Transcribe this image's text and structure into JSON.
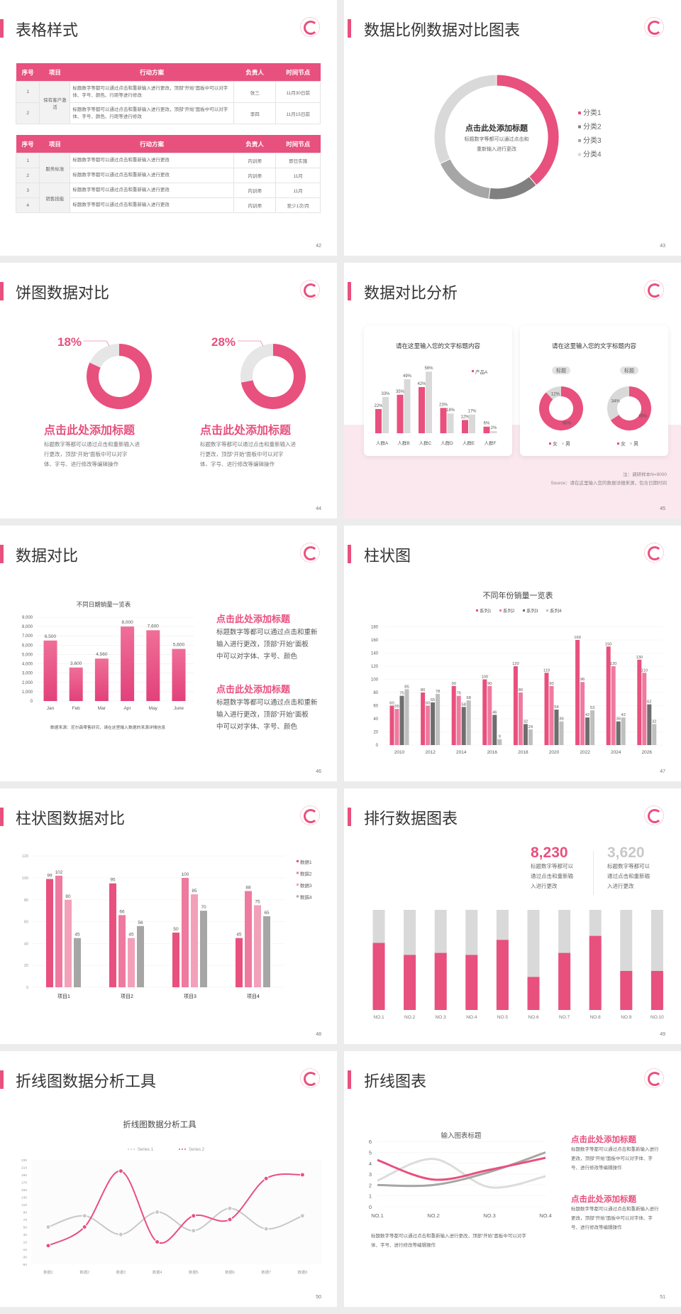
{
  "colors": {
    "accent": "#e8507e",
    "pink2": "#ee7aa0",
    "pink3": "#f3a0ba",
    "dark_gray": "#6e6e6e",
    "mid_gray": "#a6a6a6",
    "light_gray": "#d9d9d9",
    "bg_pink": "#fbe8ee"
  },
  "slides": [
    {
      "title": "表格样式",
      "page": "42",
      "table1": {
        "headers": [
          "序号",
          "项目",
          "行动方案",
          "负责人",
          "时间节点"
        ],
        "groups": [
          "保有客户激活"
        ],
        "rows": [
          {
            "no": "1",
            "action": "标题数字等都可以通过点击和重新输入进行更改，顶部“开始”面板中可以对字体、字号、颜色、行距等进行修改",
            "owner": "张三",
            "time": "11月30日前"
          },
          {
            "no": "2",
            "action": "标题数字等都可以通过点击和重新输入进行更改，顶部“开始”面板中可以对字体、字号、颜色、行距等进行修改",
            "owner": "李四",
            "time": "11月15日前"
          }
        ]
      },
      "table2": {
        "headers": [
          "序号",
          "项目",
          "行动方案",
          "负责人",
          "时间节点"
        ],
        "groups": [
          "服务标准",
          "销售技能"
        ],
        "rows": [
          {
            "no": "1",
            "action": "标题数字等都可以通过点击和重新输入进行更改",
            "owner": "内训师",
            "time": "即日实施"
          },
          {
            "no": "2",
            "action": "标题数字等都可以通过点击和重新输入进行更改",
            "owner": "内训师",
            "time": "11月"
          },
          {
            "no": "3",
            "action": "标题数字等都可以通过点击和重新输入进行更改",
            "owner": "内训师",
            "time": "11月"
          },
          {
            "no": "4",
            "action": "标题数字等都可以通过点击和重新输入进行更改",
            "owner": "内训师",
            "time": "至少1次/月"
          }
        ]
      }
    },
    {
      "title": "数据比例数据对比图表",
      "page": "43",
      "center_title": "点击此处添加标题",
      "center_desc": [
        "标题数字等都可以通过点击和",
        "重新输入进行更改"
      ]
    },
    {
      "title": "饼图数据对比",
      "page": "44",
      "items": [
        {
          "heading": "点击此处添加标题",
          "desc": [
            "标题数字等都可以通过点击和重新输入进",
            "行更改，顶部“开始”面板中可以对字",
            "体、字号、进行修改等编辑操作"
          ]
        },
        {
          "heading": "点击此处添加标题",
          "desc": [
            "标题数字等都可以通过点击和重新输入进",
            "行更改，顶部“开始”面板中可以对字",
            "体、字号、进行修改等编辑操作"
          ]
        }
      ]
    },
    {
      "title": "数据对比分析",
      "page": "45",
      "card1_title": "请在这里输入您的文字标题内容",
      "card2_title": "请在这里输入您的文字标题内容",
      "note": "注：调研样本N=9000",
      "source": "Source：请在这里输入您的数据详细来源，包含日期时间"
    },
    {
      "title": "数据对比",
      "page": "46",
      "blocks": [
        {
          "heading": "点击此处添加标题",
          "desc": [
            "标题数字等都可以通过点击和重新",
            "输入进行更改，顶部“开始”面板",
            "中可以对字体、字号、颜色"
          ]
        },
        {
          "heading": "点击此处添加标题",
          "desc": [
            "标题数字等都可以通过点击和重新",
            "输入进行更改，顶部“开始”面板",
            "中可以对字体、字号、颜色"
          ]
        }
      ]
    },
    {
      "title": "柱状图",
      "page": "47"
    },
    {
      "title": "柱状图数据对比",
      "page": "48"
    },
    {
      "title": "排行数据图表",
      "page": "49",
      "stats": [
        {
          "value": "8,230",
          "desc": [
            "标题数字等都可以",
            "通过点击和重新输",
            "入进行更改"
          ]
        },
        {
          "value": "3,620",
          "desc": [
            "标题数字等都可以",
            "通过点击和重新输",
            "入进行更改"
          ]
        }
      ]
    },
    {
      "title": "折线图数据分析工具",
      "page": "50"
    },
    {
      "title": "折线图表",
      "page": "51",
      "desc": [
        "标题数字等都可以通过点击和重新输入进行更改，顶部“开始”面板中可以对字",
        "体、字号、进行修改等编辑操作"
      ],
      "blocks": [
        {
          "heading": "点击此处添加标题",
          "desc": [
            "标题数字等都可以通过点击和重新输入进行",
            "更改，顶部“开始”面板中可以对字体、字",
            "号、进行修改等编辑操作"
          ]
        },
        {
          "heading": "点击此处添加标题",
          "desc": [
            "标题数字等都可以通过点击和重新输入进行",
            "更改，顶部“开始”面板中可以对字体、字",
            "号、进行修改等编辑操作"
          ]
        }
      ]
    }
  ],
  "chart_data": [
    {
      "type": "pie",
      "donut": true,
      "categories": [
        "分类1",
        "分类2",
        "分类3",
        "分类4"
      ],
      "values": [
        39,
        13,
        16,
        32
      ],
      "colors": [
        "#e8507e",
        "#808080",
        "#a6a6a6",
        "#d9d9d9"
      ],
      "legend": "right"
    },
    {
      "type": "pie",
      "donut": true,
      "values": [
        18,
        82
      ],
      "label": "18%",
      "colors": [
        "#e6e6e6",
        "#e8507e"
      ]
    },
    {
      "type": "pie",
      "donut": true,
      "values": [
        28,
        72
      ],
      "label": "28%",
      "colors": [
        "#e6e6e6",
        "#e8507e"
      ]
    },
    {
      "type": "bar",
      "categories": [
        "人群A",
        "人群B",
        "人群C",
        "人群D",
        "人群E",
        "人群F"
      ],
      "series": [
        {
          "name": "产品A",
          "values": [
            22,
            35,
            42,
            23,
            12,
            6
          ],
          "labels": [
            "22%",
            "35%",
            "42%",
            "23%",
            "12%",
            "6%"
          ],
          "color": "#e8507e"
        },
        {
          "values": [
            33,
            49,
            56,
            18,
            17,
            2
          ],
          "labels": [
            "33%",
            "49%",
            "56%",
            "18%",
            "17%",
            "2%"
          ],
          "color": "#d9d9d9"
        }
      ],
      "legend": "top-right"
    },
    {
      "type": "pie",
      "donut": true,
      "title": "标题",
      "categories": [
        "女",
        "男"
      ],
      "values": [
        88,
        12
      ],
      "labels": [
        "88%",
        "12%"
      ],
      "colors": [
        "#e8507e",
        "#d9d9d9"
      ]
    },
    {
      "type": "pie",
      "donut": true,
      "title": "标题",
      "categories": [
        "女",
        "男"
      ],
      "values": [
        66,
        34
      ],
      "labels": [
        "66%",
        "34%"
      ],
      "colors": [
        "#e8507e",
        "#d9d9d9"
      ]
    },
    {
      "type": "bar",
      "title": "不同日期销量一览表",
      "categories": [
        "Jan",
        "Feb",
        "Mar",
        "Apr",
        "May",
        "June"
      ],
      "values": [
        6500,
        3600,
        4560,
        8000,
        7600,
        5600
      ],
      "value_labels": [
        "6,500",
        "3,600",
        "4,560",
        "8,000",
        "7,600",
        "5,600"
      ],
      "ylim": [
        0,
        9000
      ],
      "ytick_labels": [
        "0",
        "1,000",
        "2,000",
        "3,000",
        "4,000",
        "5,000",
        "6,000",
        "7,000",
        "8,000",
        "9,000"
      ],
      "grid": true,
      "source": "数据来源：尼尔森零售研究，请在这里输入数据的来源详情信息"
    },
    {
      "type": "bar",
      "title": "不同年份销量一览表",
      "categories": [
        "2010",
        "2012",
        "2014",
        "2016",
        "2018",
        "2020",
        "2022",
        "2024",
        "2026"
      ],
      "series": [
        {
          "name": "系列1",
          "values": [
            60,
            80,
            90,
            100,
            120,
            110,
            160,
            150,
            130
          ],
          "color": "#e8507e"
        },
        {
          "name": "系列2",
          "values": [
            55,
            60,
            75,
            90,
            80,
            90,
            96,
            120,
            110
          ],
          "color": "#ef7aa0"
        },
        {
          "name": "系列3",
          "values": [
            75,
            65,
            58,
            46,
            32,
            54,
            42,
            36,
            62
          ],
          "color": "#6e6e6e"
        },
        {
          "name": "系列4",
          "values": [
            85,
            78,
            68,
            9,
            24,
            36,
            53,
            42,
            32
          ],
          "color": "#bfbfbf"
        }
      ],
      "ylim": [
        0,
        180
      ],
      "ytick_labels": [
        "0",
        "20",
        "40",
        "60",
        "80",
        "100",
        "120",
        "140",
        "160",
        "180"
      ],
      "grid": true,
      "legend": "top"
    },
    {
      "type": "bar",
      "categories": [
        "项目1",
        "项目2",
        "项目3",
        "项目4"
      ],
      "series": [
        {
          "name": "数据1",
          "values": [
            99,
            95,
            50,
            45
          ],
          "color": "#e8507e"
        },
        {
          "name": "数据2",
          "values": [
            102,
            66,
            100,
            88
          ],
          "color": "#ee7aa0"
        },
        {
          "name": "数据3",
          "values": [
            80,
            45,
            85,
            75
          ],
          "color": "#f3a0ba"
        },
        {
          "name": "数据4",
          "values": [
            45,
            56,
            70,
            65
          ],
          "color": "#a6a6a6"
        }
      ],
      "ylim": [
        0,
        120
      ],
      "ytick_labels": [
        "0",
        "20",
        "40",
        "60",
        "80",
        "100",
        "120"
      ],
      "grid": true,
      "legend": "right"
    },
    {
      "type": "bar",
      "stacked": true,
      "categories": [
        "NO.1",
        "NO.2",
        "NO.3",
        "NO.4",
        "NO.5",
        "NO.6",
        "NO.7",
        "NO.8",
        "NO.9",
        "NO.10"
      ],
      "values_percent": [
        67,
        55,
        57,
        55,
        70,
        33,
        57,
        74,
        39,
        39
      ],
      "colors": [
        "#e8507e",
        "#d9d9d9"
      ]
    },
    {
      "type": "line",
      "title": "折线图数据分析工具",
      "categories": [
        "数据1",
        "数据2",
        "数据3",
        "数据4",
        "数据5",
        "数据6",
        "数据7",
        "数据8"
      ],
      "series": [
        {
          "name": "Series 1",
          "values": [
            50,
            80,
            30,
            90,
            40,
            100,
            45,
            80
          ],
          "color": "#c8c8c8"
        },
        {
          "name": "Series 2",
          "values": [
            0,
            50,
            200,
            10,
            80,
            70,
            180,
            190
          ],
          "color": "#e8507e"
        }
      ],
      "ylim": [
        -50,
        230
      ],
      "ytick_labels": [
        "-50",
        "-30",
        "-10",
        "10",
        "30",
        "50",
        "70",
        "90",
        "110",
        "130",
        "150",
        "170",
        "190",
        "210",
        "230"
      ],
      "smooth": true,
      "legend": "top"
    },
    {
      "type": "line",
      "title": "输入图表标题",
      "categories": [
        "NO.1",
        "NO.2",
        "NO.3",
        "NO.4"
      ],
      "series": [
        {
          "values": [
            4.3,
            2.5,
            3.4,
            4.5
          ],
          "color": "#e8507e"
        },
        {
          "values": [
            2.0,
            2.0,
            3.2,
            5.0
          ],
          "color": "#a6a6a6"
        },
        {
          "values": [
            2.4,
            4.4,
            1.8,
            2.8
          ],
          "color": "#dcdcdc"
        }
      ],
      "ylim": [
        0,
        6
      ],
      "ytick_labels": [
        "0",
        "1",
        "2",
        "3",
        "4",
        "5",
        "6"
      ],
      "grid": true,
      "smooth": true
    }
  ]
}
